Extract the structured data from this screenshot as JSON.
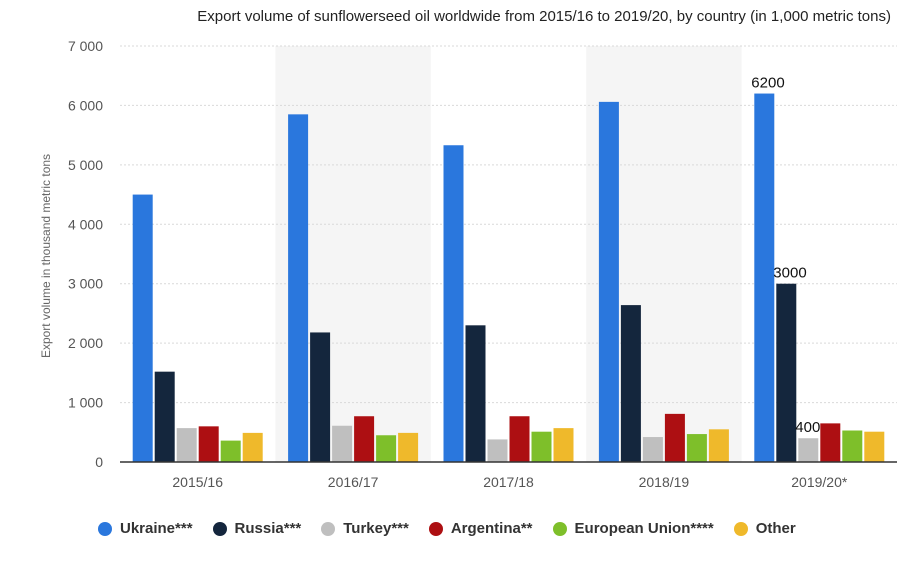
{
  "chart_data": {
    "type": "bar",
    "title": "Export volume of sunflowerseed oil worldwide from 2015/16 to 2019/20, by country (in 1,000 metric tons)",
    "ylabel": "Export volume in thousand metric tons",
    "xlabel": "",
    "ylim": [
      0,
      7000
    ],
    "yticks": [
      0,
      1000,
      2000,
      3000,
      4000,
      5000,
      6000,
      7000
    ],
    "ytick_labels": [
      "0",
      "1 000",
      "2 000",
      "3 000",
      "4 000",
      "5 000",
      "6 000",
      "7 000"
    ],
    "categories": [
      "2015/16",
      "2016/17",
      "2017/18",
      "2018/19",
      "2019/20*"
    ],
    "grid": true,
    "legend_position": "bottom",
    "series": [
      {
        "name": "Ukraine***",
        "color": "#2a77dd",
        "values": [
          4500,
          5850,
          5330,
          6060,
          6200
        ]
      },
      {
        "name": "Russia***",
        "color": "#14263d",
        "values": [
          1520,
          2180,
          2300,
          2640,
          3000
        ]
      },
      {
        "name": "Turkey***",
        "color": "#bfbfbf",
        "values": [
          570,
          610,
          380,
          420,
          400
        ]
      },
      {
        "name": "Argentina**",
        "color": "#ad0f12",
        "values": [
          600,
          770,
          770,
          810,
          650
        ]
      },
      {
        "name": "European Union****",
        "color": "#7ebf2a",
        "values": [
          360,
          450,
          510,
          470,
          530
        ]
      },
      {
        "name": "Other",
        "color": "#efb92b",
        "values": [
          490,
          490,
          570,
          550,
          510
        ]
      }
    ],
    "data_labels": [
      {
        "series": 0,
        "category": 4,
        "text": "6200"
      },
      {
        "series": 1,
        "category": 4,
        "text": "3000"
      },
      {
        "series": 2,
        "category": 4,
        "text": "400"
      }
    ]
  }
}
